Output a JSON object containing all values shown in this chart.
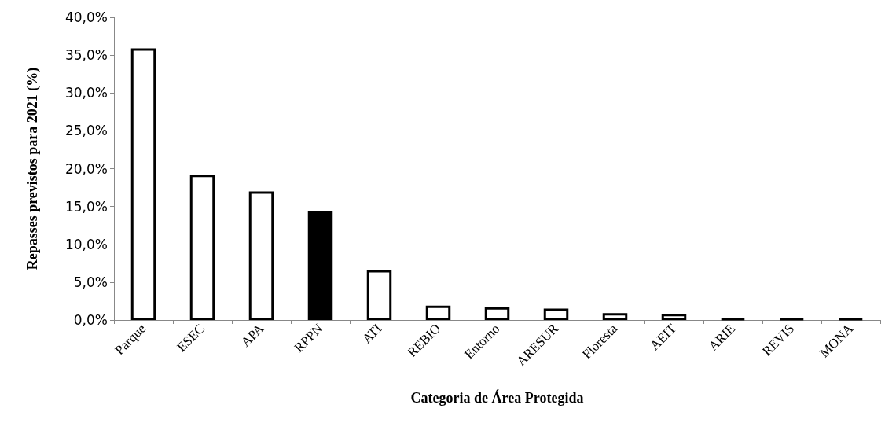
{
  "chart_data": {
    "type": "bar",
    "xlabel": "Categoria de Área Protegida",
    "ylabel": "Repasses previstos para 2021 (%)",
    "categories": [
      "Parque",
      "ESEC",
      "APA",
      "RPPN",
      "ATI",
      "REBIO",
      "Entorno",
      "ARESUR",
      "Floresta",
      "AEIT",
      "ARIE",
      "REVIS",
      "MONA"
    ],
    "values": [
      35.9,
      19.2,
      17.0,
      14.4,
      6.6,
      1.9,
      1.7,
      1.5,
      0.9,
      0.8,
      0.2,
      0.2,
      0.2
    ],
    "colors": [
      "#ffffff",
      "#ffffff",
      "#ffffff",
      "#000000",
      "#ffffff",
      "#ffffff",
      "#ffffff",
      "#ffffff",
      "#ffffff",
      "#ffffff",
      "#000000",
      "#000000",
      "#000000"
    ],
    "ylim": [
      0,
      40
    ],
    "yticks": [
      {
        "value": 0,
        "label": "0,0%"
      },
      {
        "value": 5,
        "label": "5,0%"
      },
      {
        "value": 10,
        "label": "10,0%"
      },
      {
        "value": 15,
        "label": "15,0%"
      },
      {
        "value": 20,
        "label": "20,0%"
      },
      {
        "value": 25,
        "label": "25,0%"
      },
      {
        "value": 30,
        "label": "30,0%"
      },
      {
        "value": 35,
        "label": "35,0%"
      },
      {
        "value": 40,
        "label": "40,0%"
      }
    ],
    "grid": false
  }
}
